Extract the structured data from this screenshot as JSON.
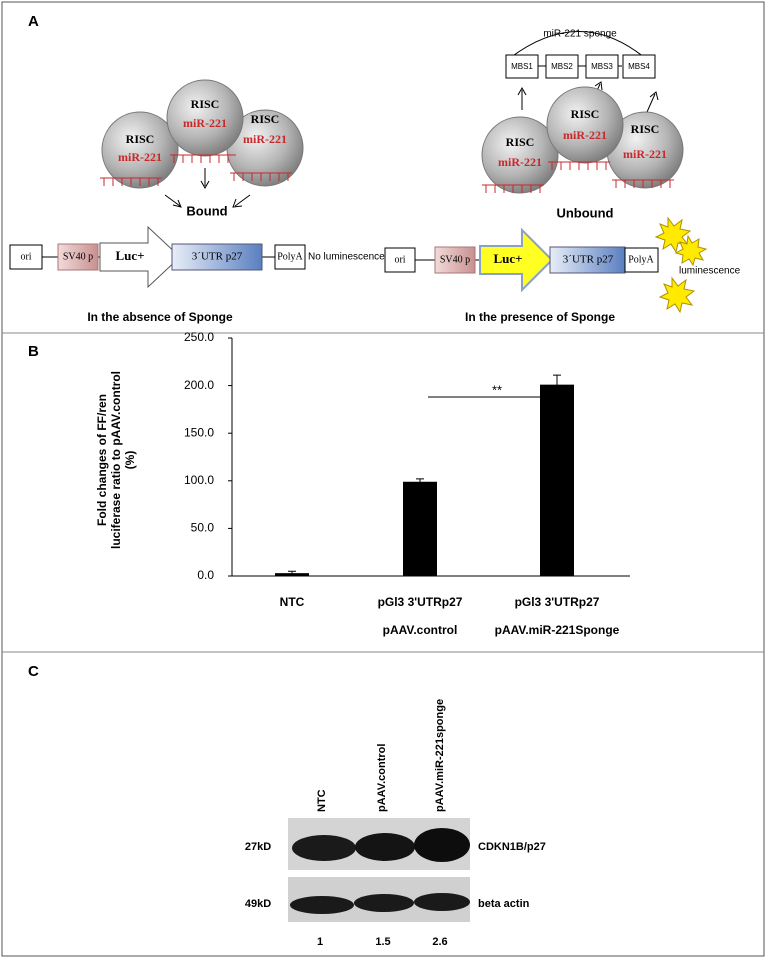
{
  "panel_a": {
    "label": "A",
    "absence": {
      "risc": [
        "RISC",
        "RISC",
        "RISC"
      ],
      "mirna": [
        "miR-221",
        "miR-221",
        "miR-221"
      ],
      "state": "Bound",
      "construct": [
        "ori",
        "SV40 p",
        "Luc+",
        "3´UTR p27",
        "PolyA"
      ],
      "readout": "No luminescence",
      "caption": "In the absence of Sponge"
    },
    "presence": {
      "sponge": "miR-221 sponge",
      "sites": [
        "MBS1",
        "MBS2",
        "MBS3",
        "MBS4"
      ],
      "risc": [
        "RISC",
        "RISC",
        "RISC"
      ],
      "mirna": [
        "miR-221",
        "miR-221",
        "miR-221"
      ],
      "state": "Unbound",
      "construct": [
        "ori",
        "SV40 p",
        "Luc+",
        "3´UTR p27",
        "PolyA"
      ],
      "readout": "luminescence",
      "caption": "In the presence of Sponge"
    }
  },
  "panel_b_label": "B",
  "chart_data": {
    "type": "bar",
    "ylabel": [
      "Fold changes of FF/ren",
      "luciferase ratio to pAAV.control",
      "(%)"
    ],
    "categories": [
      "NTC",
      "pGl3 3'UTRp27",
      "pGl3 3'UTRp27"
    ],
    "subcategories": [
      null,
      "pAAV.control",
      "pAAV.miR-221Sponge"
    ],
    "values": [
      3,
      99,
      201
    ],
    "errors": [
      2,
      3,
      10
    ],
    "color": "#000000",
    "ylim": [
      0,
      250
    ],
    "yticks": [
      {
        "value": 0,
        "label": "0.0"
      },
      {
        "value": 50,
        "label": "50.0"
      },
      {
        "value": 100,
        "label": "100.0"
      },
      {
        "value": 150,
        "label": "150.0"
      },
      {
        "value": 200,
        "label": "200.0"
      },
      {
        "value": 250,
        "label": "250.0"
      }
    ],
    "annotation": "**"
  },
  "panel_c": {
    "label": "C",
    "lanes": [
      "NTC",
      "pAAV.control",
      "pAAV.miR-221sponge"
    ],
    "sizes": [
      "27kD",
      "49kD"
    ],
    "proteins": [
      "CDKN1B/p27",
      "beta actin"
    ],
    "quantification": [
      "1",
      "1.5",
      "2.6"
    ]
  }
}
